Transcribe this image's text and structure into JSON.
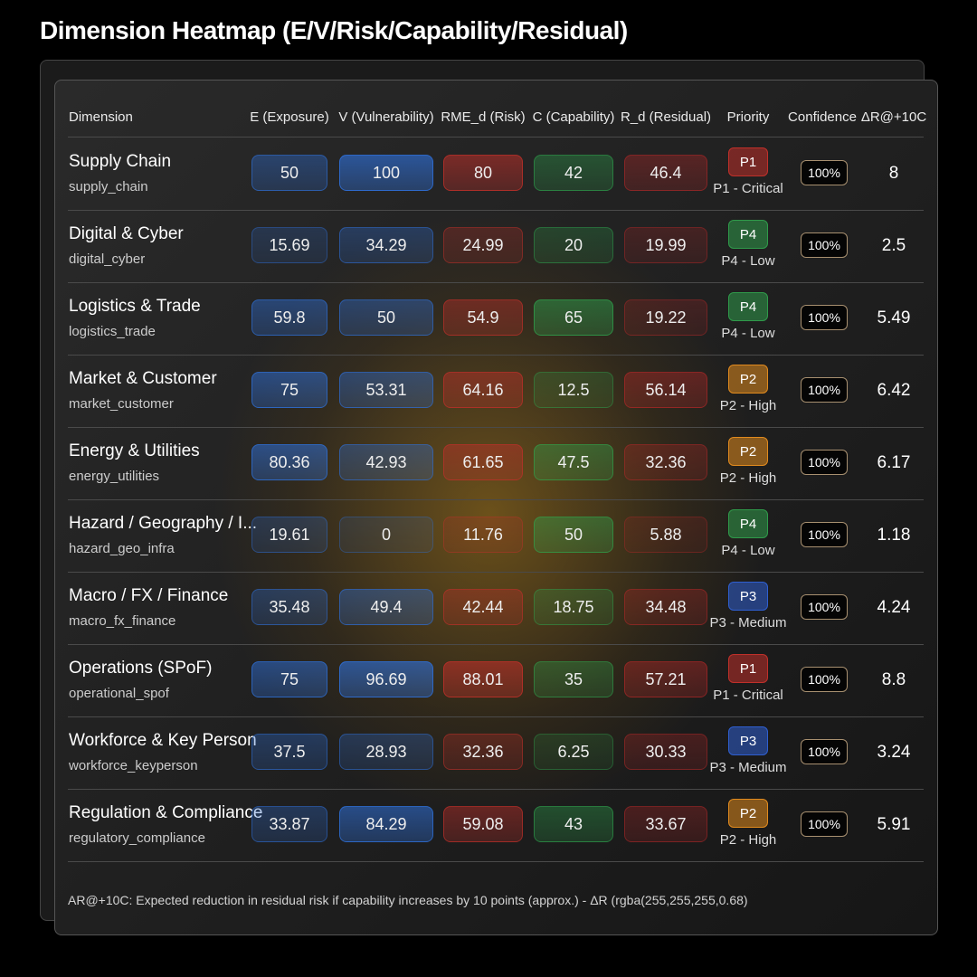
{
  "title": "Dimension Heatmap (E/V/Risk/Capability/Residual)",
  "headers": [
    "Dimension",
    "E (Exposure)",
    "V (Vulnerability)",
    "RME_d (Risk)",
    "C (Capability)",
    "R_d (Residual)",
    "Priority",
    "Confidence",
    "ΔR@+10C"
  ],
  "colors": {
    "exposure": "#2f6fd6",
    "vulnerability": "#2f6fd6",
    "risk": "#c0302a",
    "capability": "#2fa84f",
    "residual": "#b02828",
    "P1": "#c0302a",
    "P2": "#e08a1e",
    "P3": "#2f5fd0",
    "P4": "#2f9a4a",
    "confidence_border": "#a89070"
  },
  "rows": [
    {
      "name": "Supply Chain",
      "key": "supply_chain",
      "E": "50",
      "V": "100",
      "RME": "80",
      "C": "42",
      "R": "46.4",
      "priority": "P1",
      "priority_label": "P1 - Critical",
      "confidence": "100%",
      "delta": "8"
    },
    {
      "name": "Digital & Cyber",
      "key": "digital_cyber",
      "E": "15.69",
      "V": "34.29",
      "RME": "24.99",
      "C": "20",
      "R": "19.99",
      "priority": "P4",
      "priority_label": "P4 - Low",
      "confidence": "100%",
      "delta": "2.5"
    },
    {
      "name": "Logistics & Trade",
      "key": "logistics_trade",
      "E": "59.8",
      "V": "50",
      "RME": "54.9",
      "C": "65",
      "R": "19.22",
      "priority": "P4",
      "priority_label": "P4 - Low",
      "confidence": "100%",
      "delta": "5.49"
    },
    {
      "name": "Market & Customer",
      "key": "market_customer",
      "E": "75",
      "V": "53.31",
      "RME": "64.16",
      "C": "12.5",
      "R": "56.14",
      "priority": "P2",
      "priority_label": "P2 - High",
      "confidence": "100%",
      "delta": "6.42"
    },
    {
      "name": "Energy & Utilities",
      "key": "energy_utilities",
      "E": "80.36",
      "V": "42.93",
      "RME": "61.65",
      "C": "47.5",
      "R": "32.36",
      "priority": "P2",
      "priority_label": "P2 - High",
      "confidence": "100%",
      "delta": "6.17"
    },
    {
      "name": "Hazard / Geography / I...",
      "key": "hazard_geo_infra",
      "E": "19.61",
      "V": "0",
      "RME": "11.76",
      "C": "50",
      "R": "5.88",
      "priority": "P4",
      "priority_label": "P4 - Low",
      "confidence": "100%",
      "delta": "1.18"
    },
    {
      "name": "Macro / FX / Finance",
      "key": "macro_fx_finance",
      "E": "35.48",
      "V": "49.4",
      "RME": "42.44",
      "C": "18.75",
      "R": "34.48",
      "priority": "P3",
      "priority_label": "P3 - Medium",
      "confidence": "100%",
      "delta": "4.24"
    },
    {
      "name": "Operations (SPoF)",
      "key": "operational_spof",
      "E": "75",
      "V": "96.69",
      "RME": "88.01",
      "C": "35",
      "R": "57.21",
      "priority": "P1",
      "priority_label": "P1 - Critical",
      "confidence": "100%",
      "delta": "8.8"
    },
    {
      "name": "Workforce & Key Person",
      "key": "workforce_keyperson",
      "E": "37.5",
      "V": "28.93",
      "RME": "32.36",
      "C": "6.25",
      "R": "30.33",
      "priority": "P3",
      "priority_label": "P3 - Medium",
      "confidence": "100%",
      "delta": "3.24"
    },
    {
      "name": "Regulation & Compliance",
      "key": "regulatory_compliance",
      "E": "33.87",
      "V": "84.29",
      "RME": "59.08",
      "C": "43",
      "R": "33.67",
      "priority": "P2",
      "priority_label": "P2 - High",
      "confidence": "100%",
      "delta": "5.91"
    }
  ],
  "footnote": "AR@+10C: Expected reduction in residual risk if capability increases by 10 points (approx.) - ΔR (rgba(255,255,255,0.68)"
}
